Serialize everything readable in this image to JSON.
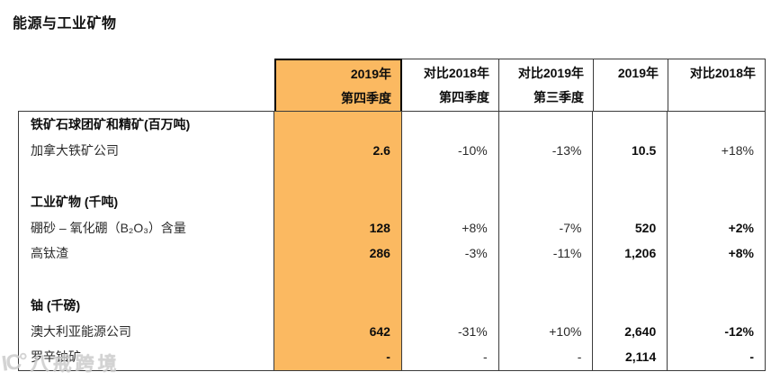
{
  "title": "能源与工业矿物",
  "table": {
    "header": {
      "q4_2019": {
        "line1": "2019年",
        "line2": "第四季度"
      },
      "vs_q4_2018": {
        "line1": "对比2018年",
        "line2": "第四季度"
      },
      "vs_q3_2019": {
        "line1": "对比2019年",
        "line2": "第三季度"
      },
      "fy_2019": {
        "line1": "2019年",
        "line2": ""
      },
      "vs_2018": {
        "line1": "对比2018年",
        "line2": ""
      }
    },
    "rows": [
      {
        "label": "铁矿石球团矿和精矿(百万吨)",
        "q4": "",
        "vs_q4": "",
        "vs_q3": "",
        "fy": "",
        "vs_2018": ""
      },
      {
        "label": "加拿大铁矿公司",
        "q4": "2.6",
        "vs_q4": "-10%",
        "vs_q3": "-13%",
        "fy": "10.5",
        "vs_2018": "+18%"
      },
      {
        "label": "",
        "q4": "",
        "vs_q4": "",
        "vs_q3": "",
        "fy": "",
        "vs_2018": ""
      },
      {
        "label": "工业矿物 (千吨)",
        "q4": "",
        "vs_q4": "",
        "vs_q3": "",
        "fy": "",
        "vs_2018": ""
      },
      {
        "label": "硼砂 – 氧化硼（B₂O₃）含量",
        "q4": "128",
        "vs_q4": "+8%",
        "vs_q3": "-7%",
        "fy": "520",
        "vs_2018": "+2%"
      },
      {
        "label": "高钛渣",
        "q4": "286",
        "vs_q4": "-3%",
        "vs_q3": "-11%",
        "fy": "1,206",
        "vs_2018": "+8%"
      },
      {
        "label": "",
        "q4": "",
        "vs_q4": "",
        "vs_q3": "",
        "fy": "",
        "vs_2018": ""
      },
      {
        "label": "铀 (千磅)",
        "q4": "",
        "vs_q4": "",
        "vs_q3": "",
        "fy": "",
        "vs_2018": ""
      },
      {
        "label": "澳大利亚能源公司",
        "q4": "642",
        "vs_q4": "-31%",
        "vs_q3": "+10%",
        "fy": "2,640",
        "vs_2018": "-12%"
      },
      {
        "label": "罗辛铀矿",
        "q4": "-",
        "vs_q4": "-",
        "vs_q3": "-",
        "fy": "2,114",
        "vs_2018": "-"
      }
    ]
  },
  "colors": {
    "highlight_column": "#FBB961",
    "border": "#3b3b3b",
    "text": "#0d0d0d"
  },
  "watermark": {
    "logo": "IC°",
    "text": "八戒跨境"
  }
}
